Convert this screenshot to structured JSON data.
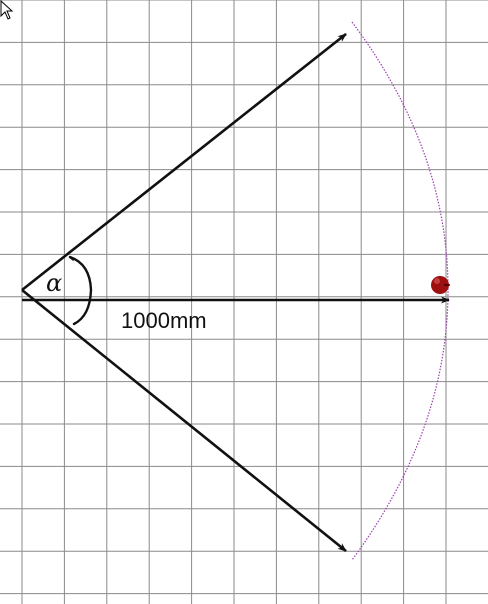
{
  "diagram": {
    "distance_label": "1000mm",
    "angle_symbol": "α",
    "colors": {
      "grid": "#8a8a8a",
      "background": "#ffffff",
      "arrow": "#111111",
      "arc": "#9b3fb0",
      "target": "#9e1010",
      "target_highlight": "#d65050",
      "cursor_fill": "#ffffff",
      "cursor_stroke": "#000000"
    },
    "elements": {
      "upper_arrow": "arrow",
      "center_arrow": "arrow",
      "lower_arrow": "arrow",
      "sweep_arc": "dotted arc",
      "target": "dot",
      "cursor": "mouse-pointer"
    }
  }
}
